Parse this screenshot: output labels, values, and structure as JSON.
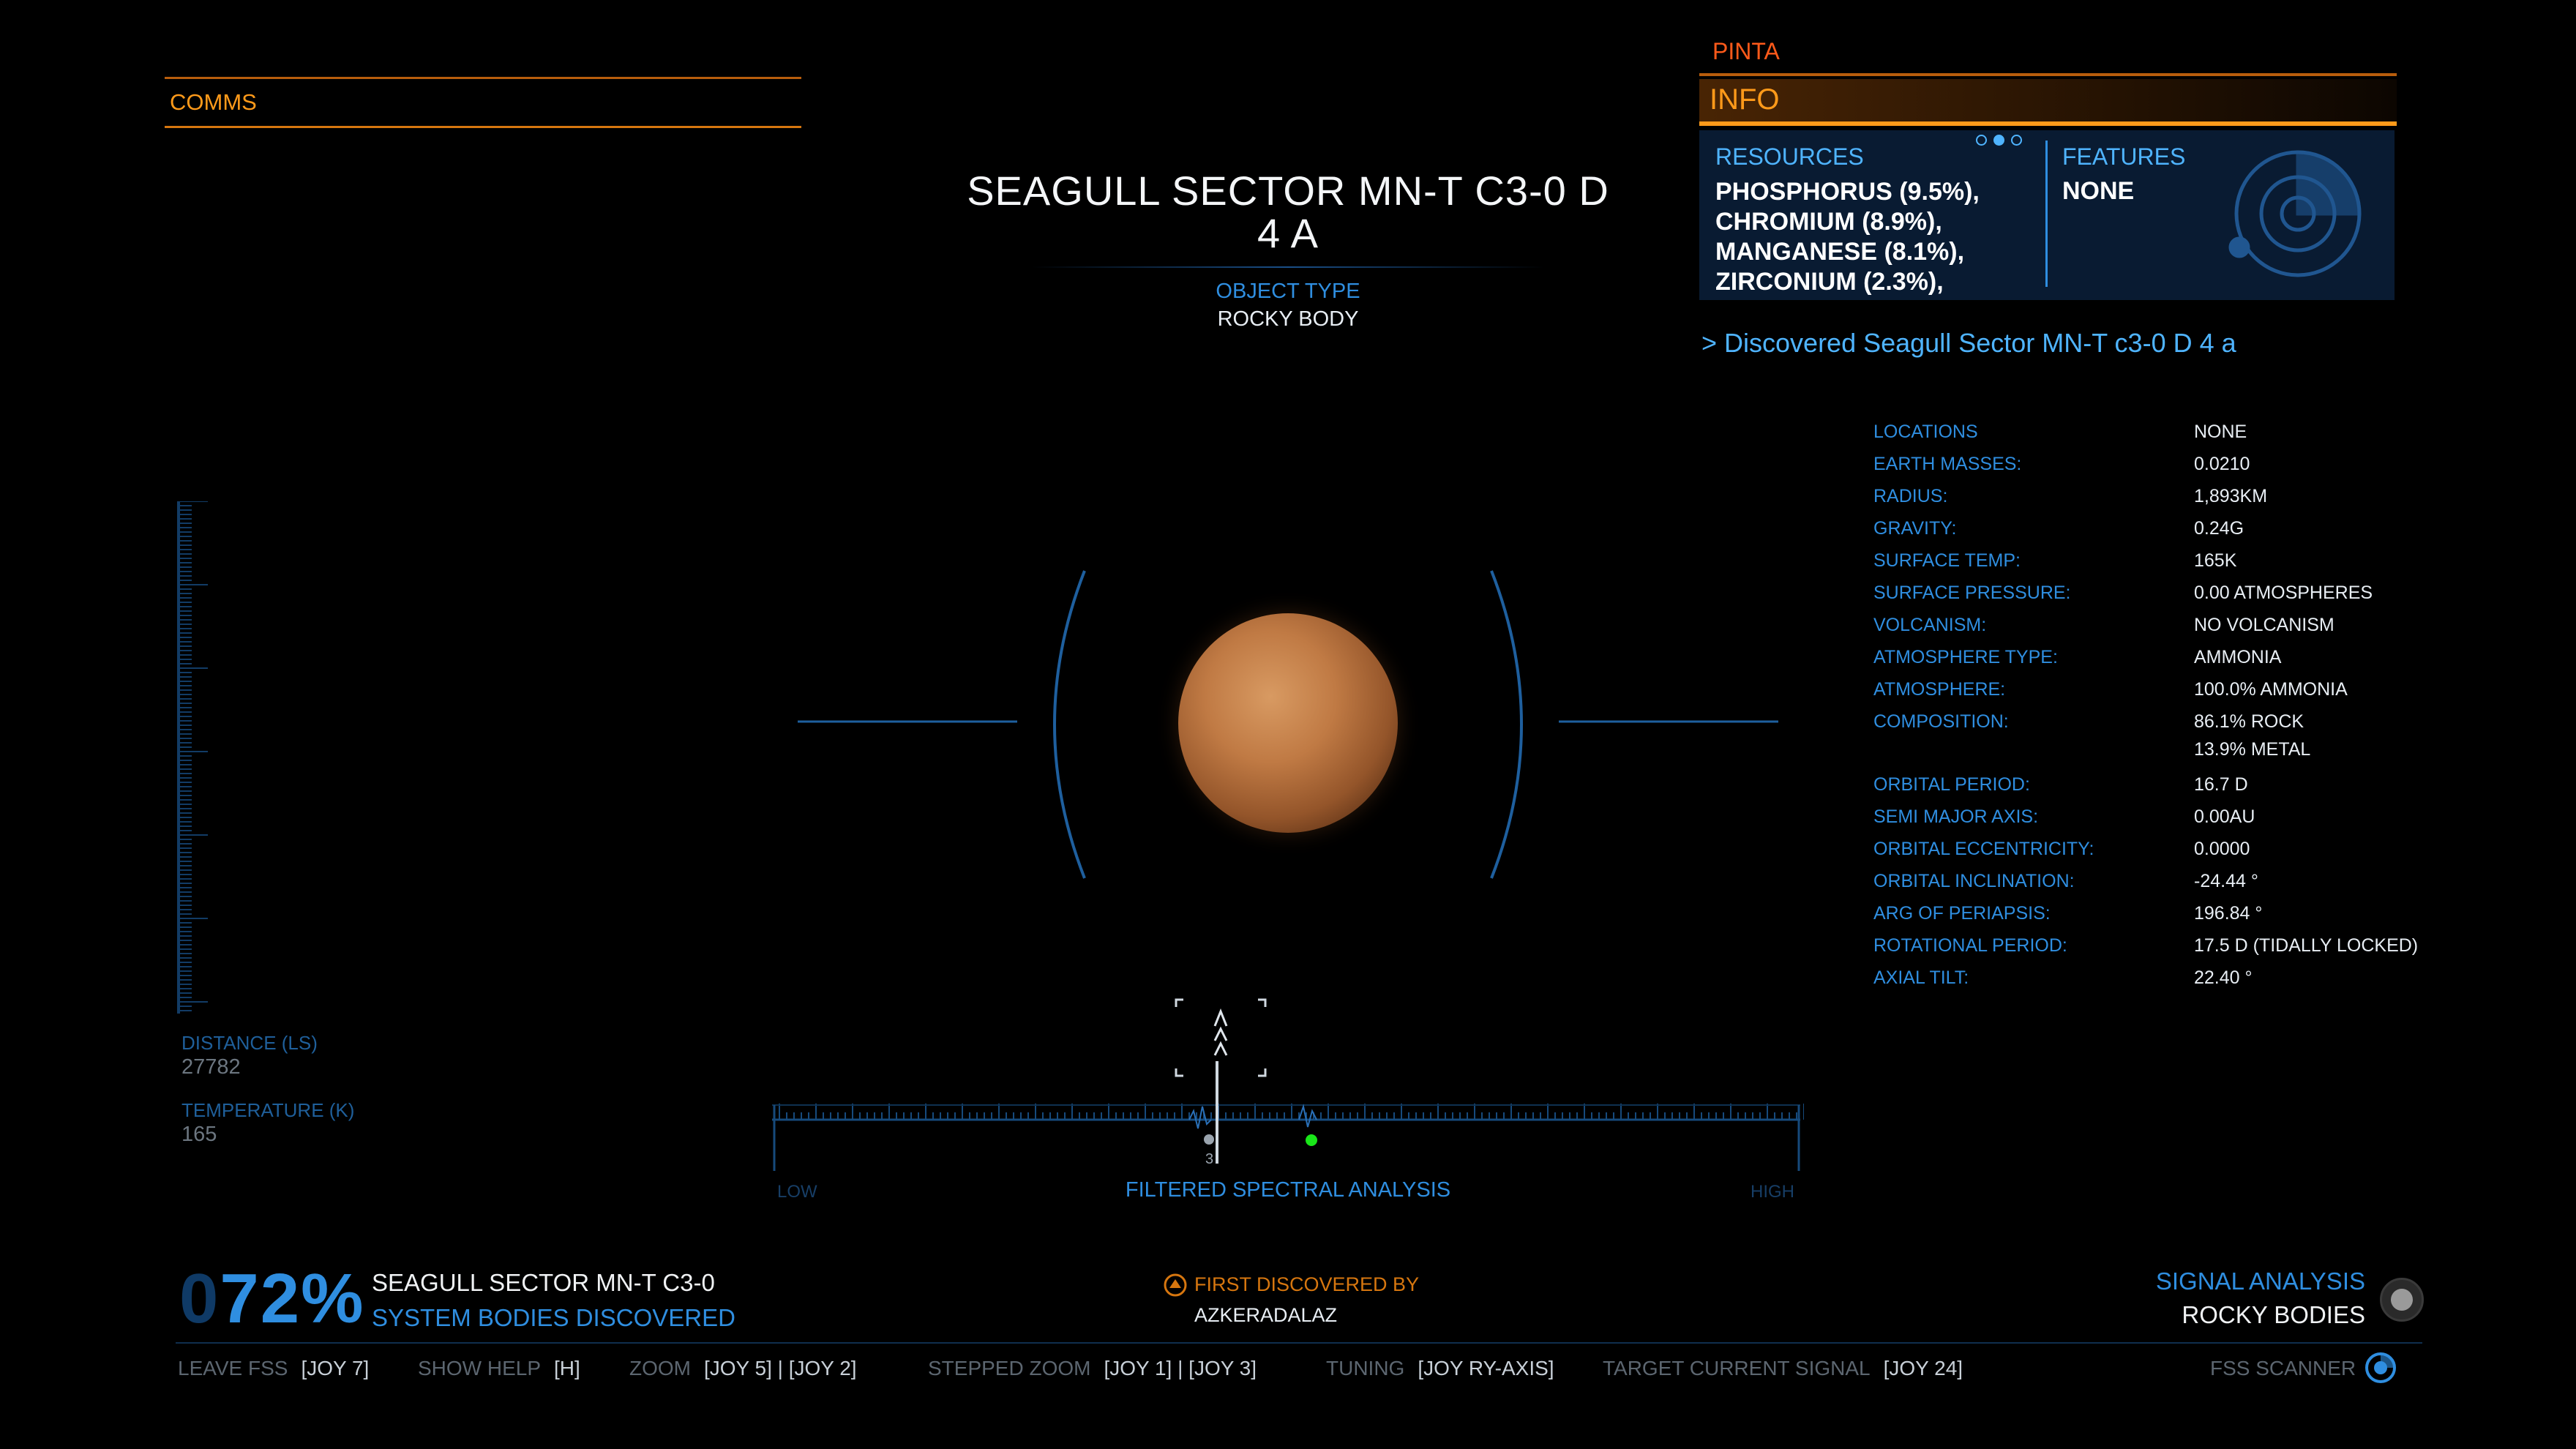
{
  "comms": {
    "label": "COMMS"
  },
  "info_panel": {
    "body_name": "PINTA",
    "tab": "INFO",
    "resources_heading": "RESOURCES",
    "resources": [
      "PHOSPHORUS (9.5%),",
      "CHROMIUM (8.9%),",
      "MANGANESE (8.1%),",
      "ZIRCONIUM (2.3%),"
    ],
    "features_heading": "FEATURES",
    "features_value": "NONE",
    "discovered_message": "> Discovered Seagull Sector MN-T c3-0 D 4 a"
  },
  "target": {
    "title_line1": "SEAGULL SECTOR MN-T C3-0 D",
    "title_line2": "4 A",
    "object_type_label": "OBJECT TYPE",
    "object_type_value": "ROCKY BODY"
  },
  "stats": [
    {
      "label": "LOCATIONS",
      "value": "NONE"
    },
    {
      "label": "EARTH MASSES:",
      "value": "0.0210"
    },
    {
      "label": "RADIUS:",
      "value": "1,893KM"
    },
    {
      "label": "GRAVITY:",
      "value": "0.24G"
    },
    {
      "label": "SURFACE TEMP:",
      "value": "165K"
    },
    {
      "label": "SURFACE PRESSURE:",
      "value": "0.00 ATMOSPHERES"
    },
    {
      "label": "VOLCANISM:",
      "value": "NO VOLCANISM"
    },
    {
      "label": "ATMOSPHERE TYPE:",
      "value": "AMMONIA"
    },
    {
      "label": "ATMOSPHERE:",
      "value": "100.0% AMMONIA"
    },
    {
      "label": "COMPOSITION:",
      "value": "86.1% ROCK"
    },
    {
      "label": "",
      "value": "13.9% METAL"
    },
    {
      "label": "ORBITAL PERIOD:",
      "value": "16.7 D"
    },
    {
      "label": "SEMI MAJOR AXIS:",
      "value": "0.00AU"
    },
    {
      "label": "ORBITAL ECCENTRICITY:",
      "value": "0.0000"
    },
    {
      "label": "ORBITAL INCLINATION:",
      "value": "-24.44 °"
    },
    {
      "label": "ARG OF PERIAPSIS:",
      "value": "196.84 °"
    },
    {
      "label": "ROTATIONAL PERIOD:",
      "value": "17.5 D (TIDALLY LOCKED)"
    },
    {
      "label": "AXIAL TILT:",
      "value": "22.40 °"
    }
  ],
  "gauge": {
    "distance_label": "DISTANCE (LS)",
    "distance_value": "27782",
    "temperature_label": "TEMPERATURE (K)",
    "temperature_value": "165"
  },
  "spectral": {
    "low_label": "LOW",
    "high_label": "HIGH",
    "title": "FILTERED SPECTRAL ANALYSIS",
    "signal_count": "3"
  },
  "status": {
    "percent_dim": "0",
    "percent": "72%",
    "system_name": "SEAGULL SECTOR MN-T C3-0",
    "bodies_discovered_label": "SYSTEM BODIES DISCOVERED",
    "first_discovered_label": "FIRST DISCOVERED BY",
    "first_discovered_by": "AZKERADALAZ",
    "signal_analysis_label": "SIGNAL ANALYSIS",
    "signal_analysis_value": "ROCKY BODIES"
  },
  "controls": [
    {
      "label": "LEAVE FSS",
      "key": "[JOY 7]"
    },
    {
      "label": "SHOW HELP",
      "key": "[H]"
    },
    {
      "label": "ZOOM",
      "key": "[JOY 5] | [JOY 2]"
    },
    {
      "label": "STEPPED ZOOM",
      "key": "[JOY 1] | [JOY 3]"
    },
    {
      "label": "TUNING",
      "key": "[JOY RY-AXIS]"
    },
    {
      "label": "TARGET CURRENT SIGNAL",
      "key": "[JOY 24]"
    }
  ],
  "fss_scanner_label": "FSS SCANNER",
  "colors": {
    "hud_blue": "#2f8ee0",
    "hud_orange": "#ff9a1a",
    "signal_green": "#19e619"
  }
}
